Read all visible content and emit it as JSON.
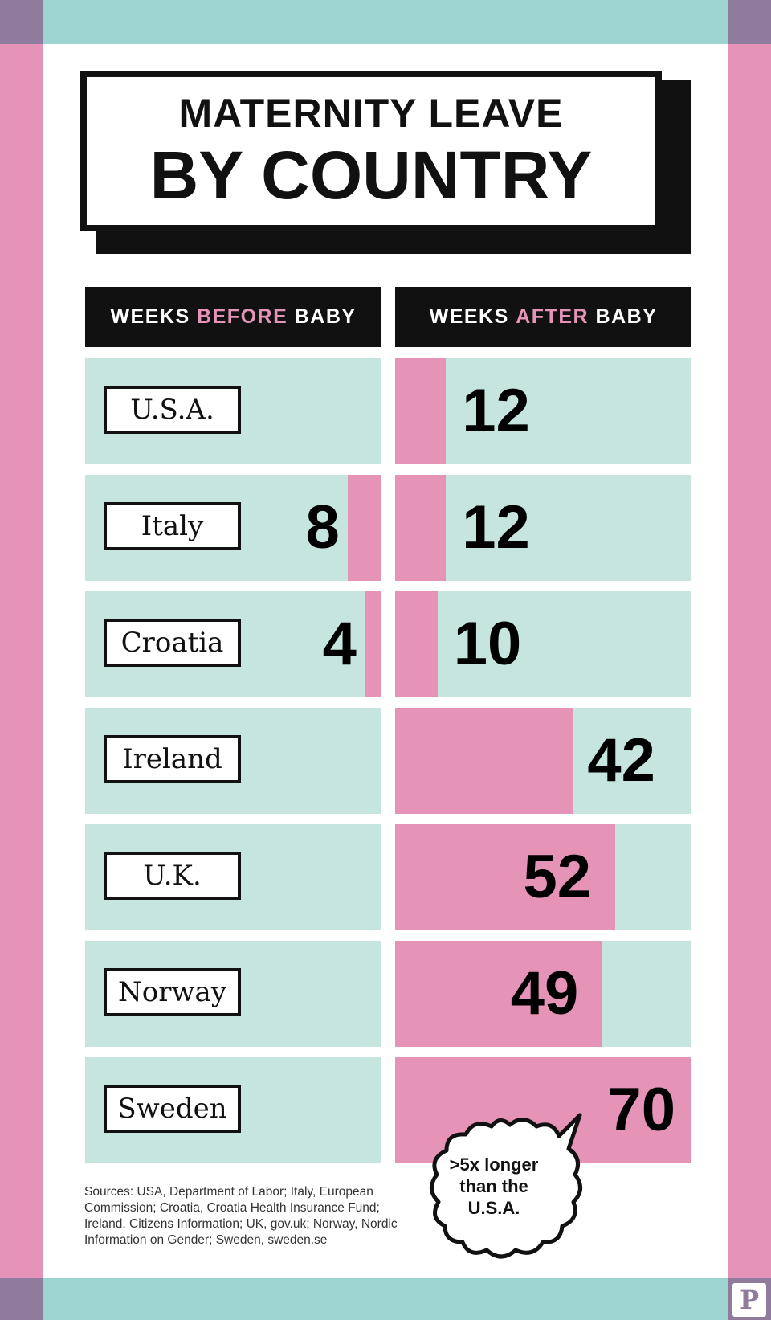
{
  "title": {
    "line1": "MATERNITY LEAVE",
    "line2": "BY COUNTRY"
  },
  "headers": {
    "before": {
      "prefix": "WEEKS ",
      "accent": "BEFORE",
      "suffix": " BABY"
    },
    "after": {
      "prefix": "WEEKS ",
      "accent": "AFTER",
      "suffix": " BABY"
    }
  },
  "chart_data": {
    "type": "bar",
    "categories": [
      "U.S.A.",
      "Italy",
      "Croatia",
      "Ireland",
      "U.K.",
      "Norway",
      "Sweden"
    ],
    "series": [
      {
        "name": "WEEKS BEFORE BABY",
        "values": [
          null,
          8,
          4,
          null,
          null,
          null,
          null
        ]
      },
      {
        "name": "WEEKS AFTER BABY",
        "values": [
          12,
          12,
          10,
          42,
          52,
          49,
          70
        ]
      }
    ],
    "title": "MATERNITY LEAVE BY COUNTRY",
    "xlim": [
      0,
      70
    ]
  },
  "callout": {
    "text": ">5x longer than the U.S.A."
  },
  "sources": "Sources: USA, Department of Labor; Italy, European Commission; Croatia, Croatia Health Insurance Fund; Ireland, Citizens Information; UK, gov.uk; Norway, Nordic Information on Gender; Sweden, sweden.se",
  "logo": "P",
  "colors": {
    "teal": "#9dd4d2",
    "mint": "#c5e5de",
    "pink": "#e693b8",
    "mauve": "#8f7c9c",
    "black": "#111111"
  }
}
